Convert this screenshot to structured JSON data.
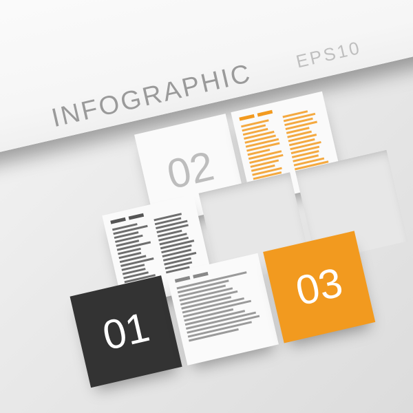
{
  "title": {
    "main": "INFOGRAPHIC",
    "sub": "EPS10",
    "main_color": "#9a9a9a",
    "sub_color": "#bfbfbf",
    "main_fontsize": 38,
    "sub_fontsize": 26
  },
  "layout": {
    "tile_size": 136,
    "angle_deg": -13,
    "gap": 8
  },
  "palette": {
    "dark": "#333333",
    "white": "#fafafa",
    "orange": "#f29a1f",
    "light": "#e7e7e7",
    "num_font": "#ffffff"
  },
  "tiles": [
    {
      "id": "t02",
      "kind": "number",
      "num": "02",
      "bg": "#fafafa",
      "num_color": "#bdbdbd",
      "num_size": 60,
      "row": 0,
      "col": 1
    },
    {
      "id": "txt-a",
      "kind": "text",
      "bg": "#fafafa",
      "ink": "#f29a1f",
      "row": 0,
      "col": 2,
      "two_col": true
    },
    {
      "id": "txt-b",
      "kind": "text",
      "bg": "#fafafa",
      "ink": "#555555",
      "row": 1,
      "col": 0,
      "two_col": true
    },
    {
      "id": "gap11",
      "kind": "blank",
      "bg": "#e7e7e7",
      "row": 1,
      "col": 1
    },
    {
      "id": "gap12",
      "kind": "blank",
      "bg": "#e7e7e7",
      "row": 1,
      "col": 2
    },
    {
      "id": "t01",
      "kind": "number",
      "num": "01",
      "bg": "#333333",
      "num_color": "#ffffff",
      "num_size": 60,
      "row": 2,
      "col": 0
    },
    {
      "id": "txt-c",
      "kind": "text",
      "bg": "#fafafa",
      "ink": "#888888",
      "row": 2,
      "col": 1,
      "two_col": false
    },
    {
      "id": "t03",
      "kind": "number",
      "num": "03",
      "bg": "#f29a1f",
      "num_color": "#ffffff",
      "num_size": 60,
      "row": 2,
      "col": 2
    }
  ]
}
